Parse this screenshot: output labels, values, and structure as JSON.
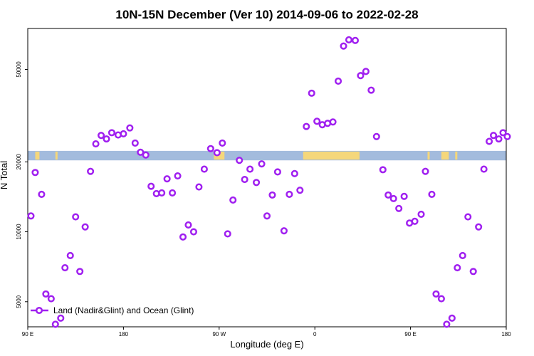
{
  "chart_data": {
    "type": "scatter",
    "title": "10N-15N December (Ver 10)   2014-09-06 to 2022-02-28",
    "xlabel": "Longitude (deg E)",
    "ylabel": "N Total",
    "x_ticks": [
      {
        "value": 90,
        "label": "90 E"
      },
      {
        "value": 180,
        "label": "180"
      },
      {
        "value": 270,
        "label": "90 W"
      },
      {
        "value": 360,
        "label": "0"
      },
      {
        "value": 450,
        "label": "90 E"
      },
      {
        "value": 540,
        "label": "180"
      }
    ],
    "xlim": [
      90,
      540
    ],
    "y_scale": "log",
    "ylim": [
      3900,
      75000
    ],
    "y_ticks": [
      5000,
      10000,
      20000,
      50000
    ],
    "grid": false,
    "legend_placement": "bottom-left",
    "colors": {
      "series": "#a020f0",
      "ocean_band": "#a3bbdd",
      "land_band": "#f5d77b"
    },
    "series": [
      {
        "name": "Land (Nadir&Glint) and Ocean (Glint)",
        "points": [
          [
            93,
            11700
          ],
          [
            97,
            18000
          ],
          [
            103,
            14500
          ],
          [
            107,
            5400
          ],
          [
            112,
            5150
          ],
          [
            116,
            4000
          ],
          [
            121,
            4250
          ],
          [
            125,
            7000
          ],
          [
            130,
            7900
          ],
          [
            135,
            11600
          ],
          [
            139,
            6750
          ],
          [
            144,
            10500
          ],
          [
            149,
            18200
          ],
          [
            154,
            23900
          ],
          [
            159,
            26000
          ],
          [
            164,
            25100
          ],
          [
            169,
            26700
          ],
          [
            175,
            26100
          ],
          [
            180,
            26400
          ],
          [
            186,
            28000
          ],
          [
            191,
            24100
          ],
          [
            196,
            22000
          ],
          [
            201,
            21400
          ],
          [
            206,
            15700
          ],
          [
            211,
            14600
          ],
          [
            216,
            14700
          ],
          [
            221,
            16900
          ],
          [
            226,
            14700
          ],
          [
            231,
            17400
          ],
          [
            236,
            9500
          ],
          [
            241,
            10700
          ],
          [
            246,
            10000
          ],
          [
            251,
            15600
          ],
          [
            256,
            18600
          ],
          [
            262,
            22800
          ],
          [
            268,
            21900
          ],
          [
            273,
            24100
          ],
          [
            278,
            9800
          ],
          [
            283,
            13700
          ],
          [
            289,
            20300
          ],
          [
            294,
            16800
          ],
          [
            299,
            18600
          ],
          [
            305,
            16300
          ],
          [
            310,
            19600
          ],
          [
            315,
            11700
          ],
          [
            320,
            14400
          ],
          [
            325,
            18100
          ],
          [
            331,
            10100
          ],
          [
            336,
            14500
          ],
          [
            341,
            17800
          ],
          [
            346,
            15100
          ],
          [
            352,
            28400
          ],
          [
            357,
            39500
          ],
          [
            362,
            29900
          ],
          [
            367,
            28900
          ],
          [
            372,
            29300
          ],
          [
            377,
            29700
          ],
          [
            382,
            44500
          ],
          [
            387,
            63000
          ],
          [
            392,
            67000
          ],
          [
            398,
            66600
          ],
          [
            403,
            47000
          ],
          [
            408,
            49000
          ],
          [
            413,
            40700
          ],
          [
            418,
            25700
          ],
          [
            424,
            18500
          ],
          [
            429,
            14400
          ],
          [
            434,
            13900
          ],
          [
            439,
            12600
          ],
          [
            444,
            14200
          ],
          [
            449,
            10900
          ],
          [
            454,
            11100
          ],
          [
            460,
            11900
          ],
          [
            464,
            18200
          ],
          [
            470,
            14500
          ],
          [
            474,
            5400
          ],
          [
            479,
            5150
          ],
          [
            484,
            4000
          ],
          [
            489,
            4250
          ],
          [
            494,
            7000
          ],
          [
            499,
            7900
          ],
          [
            504,
            11600
          ],
          [
            509,
            6750
          ],
          [
            514,
            10500
          ],
          [
            519,
            18600
          ],
          [
            524,
            24500
          ],
          [
            528,
            26000
          ],
          [
            533,
            25100
          ],
          [
            537,
            26700
          ],
          [
            541,
            25700
          ]
        ]
      }
    ]
  }
}
